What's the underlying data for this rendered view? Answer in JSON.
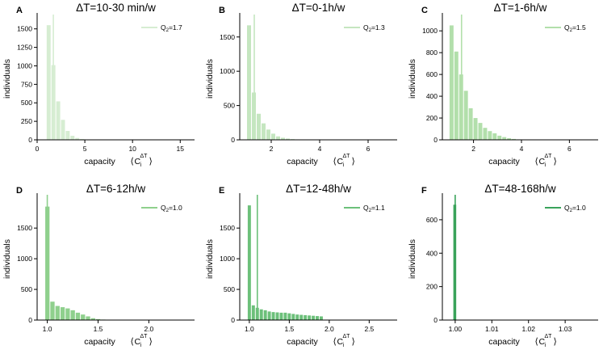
{
  "figure": {
    "description_colors": {
      "A": "#d6edd2",
      "B": "#c5e6c0",
      "C": "#b2dfab",
      "D": "#8fd08d",
      "E": "#6cc07a",
      "F": "#3aa35b"
    },
    "axis_color": "#000000"
  },
  "chart_data": [
    {
      "type": "bar",
      "panel": "A",
      "title": "ΔT=10-30 min/w",
      "xlabel": "capacity",
      "ylabel": "individuals",
      "xlim": [
        0,
        16.5
      ],
      "ylim": [
        0,
        1650
      ],
      "xticks": [
        0,
        5,
        10,
        15
      ],
      "xtick_labels": [
        "0",
        "5",
        "10",
        "15"
      ],
      "yticks": [
        0,
        250,
        500,
        750,
        1000,
        1250,
        1500
      ],
      "ytick_labels": [
        "0",
        "250",
        "500",
        "750",
        "1000",
        "1250",
        "1500"
      ],
      "bin_start": 0.5,
      "bin_width": 0.5,
      "values": [
        0,
        1550,
        1010,
        520,
        270,
        120,
        55,
        25,
        10,
        5,
        3,
        2
      ],
      "median": 1.7,
      "legend": "Q2=1.7",
      "legend_sub": "2",
      "legend_val": "=1.7",
      "color": "#d6edd2"
    },
    {
      "type": "bar",
      "panel": "B",
      "title": "ΔT=0-1h/w",
      "xlabel": "capacity",
      "ylabel": "individuals",
      "xlim": [
        0.7,
        7.2
      ],
      "ylim": [
        0,
        1780
      ],
      "xticks": [
        2,
        4,
        6
      ],
      "xtick_labels": [
        "2",
        "4",
        "6"
      ],
      "yticks": [
        0,
        500,
        1000,
        1500
      ],
      "ytick_labels": [
        "0",
        "500",
        "1000",
        "1500"
      ],
      "bin_start": 1.0,
      "bin_width": 0.2,
      "values": [
        1670,
        690,
        380,
        240,
        150,
        90,
        50,
        30,
        18,
        10,
        6,
        3,
        2
      ],
      "median": 1.3,
      "legend": "Q2=1.3",
      "legend_sub": "2",
      "legend_val": "=1.3",
      "color": "#c5e6c0"
    },
    {
      "type": "bar",
      "panel": "C",
      "title": "ΔT=1-6h/w",
      "xlabel": "capacity",
      "ylabel": "individuals",
      "xlim": [
        0.7,
        7.2
      ],
      "ylim": [
        0,
        1120
      ],
      "xticks": [
        2,
        4,
        6
      ],
      "xtick_labels": [
        "2",
        "4",
        "6"
      ],
      "yticks": [
        0,
        200,
        400,
        600,
        800,
        1000
      ],
      "ytick_labels": [
        "0",
        "200",
        "400",
        "600",
        "800",
        "1000"
      ],
      "bin_start": 1.0,
      "bin_width": 0.2,
      "values": [
        1050,
        810,
        600,
        450,
        290,
        200,
        155,
        110,
        80,
        60,
        38,
        25,
        15,
        8,
        4
      ],
      "median": 1.5,
      "legend": "Q2=1.5",
      "legend_sub": "2",
      "legend_val": "=1.5",
      "color": "#b2dfab"
    },
    {
      "type": "bar",
      "panel": "D",
      "title": "ΔT=6-12h/w",
      "xlabel": "capacity",
      "ylabel": "individuals",
      "xlim": [
        0.9,
        2.45
      ],
      "ylim": [
        0,
        1990
      ],
      "xticks": [
        1.0,
        1.5,
        2.0
      ],
      "xtick_labels": [
        "1.0",
        "1.5",
        "2.0"
      ],
      "yticks": [
        0,
        500,
        1000,
        1500
      ],
      "ytick_labels": [
        "0",
        "500",
        "1000",
        "1500"
      ],
      "bin_start": 0.98,
      "bin_width": 0.05,
      "values": [
        1850,
        300,
        230,
        210,
        190,
        160,
        120,
        90,
        60,
        30,
        15,
        8,
        4,
        2
      ],
      "median": 1.0,
      "legend": "Q2=1.0",
      "legend_sub": "2",
      "legend_val": "=1.0",
      "color": "#8fd08d"
    },
    {
      "type": "bar",
      "panel": "E",
      "title": "ΔT=12-48h/w",
      "xlabel": "capacity",
      "ylabel": "individuals",
      "xlim": [
        0.88,
        2.85
      ],
      "ylim": [
        0,
        1990
      ],
      "xticks": [
        1.0,
        1.5,
        2.0,
        2.5
      ],
      "xtick_labels": [
        "1.0",
        "1.5",
        "2.0",
        "2.5"
      ],
      "yticks": [
        0,
        500,
        1000,
        1500
      ],
      "ytick_labels": [
        "0",
        "500",
        "1000",
        "1500"
      ],
      "bin_start": 0.98,
      "bin_width": 0.05,
      "values": [
        1870,
        240,
        200,
        175,
        160,
        140,
        130,
        125,
        120,
        120,
        110,
        100,
        90,
        85,
        80,
        75,
        70,
        65,
        60,
        5
      ],
      "median": 1.1,
      "legend": "Q2=1.1",
      "legend_sub": "2",
      "legend_val": "=1.1",
      "color": "#6cc07a"
    },
    {
      "type": "bar",
      "panel": "F",
      "title": "ΔT=48-168h/w",
      "xlabel": "capacity",
      "ylabel": "individuals",
      "xlim": [
        0.9965,
        1.039
      ],
      "ylim": [
        0,
        730
      ],
      "xticks": [
        1.0,
        1.01,
        1.02,
        1.03
      ],
      "xtick_labels": [
        "1.00",
        "1.01",
        "1.02",
        "1.03"
      ],
      "yticks": [
        0,
        200,
        400,
        600
      ],
      "ytick_labels": [
        "0",
        "200",
        "400",
        "600"
      ],
      "bin_start": 0.9995,
      "bin_width": 0.001,
      "values": [
        690
      ],
      "median": 1.0,
      "legend": "Q2=1.0",
      "legend_sub": "2",
      "legend_val": "=1.0",
      "color": "#3aa35b"
    }
  ]
}
